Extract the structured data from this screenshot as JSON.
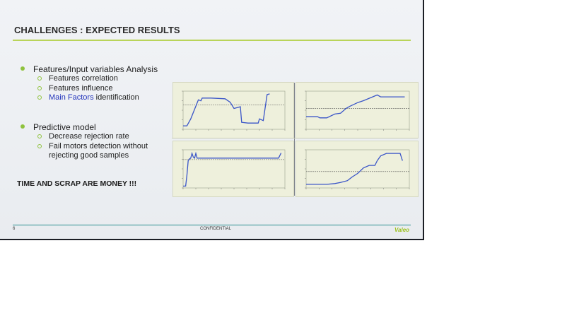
{
  "slide": {
    "title": "CHALLENGES : EXPECTED RESULTS",
    "sections": [
      {
        "heading": "Features/Input variables Analysis",
        "items": [
          {
            "text": "Features correlation"
          },
          {
            "text": "Features influence"
          },
          {
            "accent": "Main Factors",
            "text": " identification"
          }
        ]
      },
      {
        "heading": "Predictive model",
        "items": [
          {
            "text": "Decrease rejection rate"
          },
          {
            "text": "Fail motors detection without"
          },
          {
            "text": "rejecting good samples"
          }
        ]
      }
    ],
    "callout": "TIME AND SCRAP ARE MONEY !!!",
    "footer": {
      "page_number": "6",
      "label": "CONFIDENTIAL",
      "logo": "Valeo"
    },
    "colors": {
      "accent_green": "#8fc23d",
      "line_blue": "#3a55c8",
      "text_accent": "#2233bb"
    }
  },
  "chart_data": [
    {
      "type": "line",
      "name_position": "top-left",
      "x": [
        0,
        3,
        6,
        12,
        14,
        15,
        22,
        33,
        37,
        40,
        45,
        46,
        51,
        59,
        60,
        63,
        66,
        68
      ],
      "values": [
        0.1,
        0.1,
        0.3,
        0.85,
        0.82,
        0.9,
        0.9,
        0.88,
        0.78,
        0.6,
        0.65,
        0.2,
        0.18,
        0.18,
        0.3,
        0.25,
        1.0,
        1.02
      ],
      "threshold": 0.7,
      "xlim": [
        0,
        80
      ],
      "ylim": [
        0,
        1.1
      ]
    },
    {
      "type": "line",
      "name_position": "top-right",
      "x": [
        0,
        6,
        10,
        12,
        18,
        25,
        30,
        35,
        38,
        45,
        50,
        58,
        62,
        65,
        70,
        82,
        86
      ],
      "values": [
        0.33,
        0.33,
        0.33,
        0.3,
        0.3,
        0.4,
        0.42,
        0.55,
        0.6,
        0.7,
        0.75,
        0.85,
        0.9,
        0.85,
        0.85,
        0.85,
        0.85
      ],
      "threshold": 0.55,
      "xlim": [
        0,
        90
      ],
      "ylim": [
        0,
        1.0
      ]
    },
    {
      "type": "line",
      "name_position": "bottom-left",
      "x": [
        0,
        2,
        3,
        4,
        5,
        6,
        7,
        8,
        9,
        10,
        11,
        12,
        14,
        20,
        40,
        60,
        70,
        75,
        77
      ],
      "values": [
        0.05,
        0.05,
        0.35,
        0.75,
        0.8,
        0.82,
        0.95,
        0.85,
        0.82,
        0.95,
        0.82,
        0.82,
        0.82,
        0.82,
        0.82,
        0.82,
        0.82,
        0.82,
        0.96
      ],
      "threshold": 0.78,
      "xlim": [
        0,
        80
      ],
      "ylim": [
        0,
        1.05
      ]
    },
    {
      "type": "line",
      "name_position": "bottom-right",
      "x": [
        0,
        10,
        18,
        25,
        30,
        36,
        40,
        45,
        50,
        55,
        60,
        62,
        65,
        70,
        75,
        82,
        84
      ],
      "values": [
        0.1,
        0.1,
        0.1,
        0.12,
        0.15,
        0.2,
        0.3,
        0.4,
        0.55,
        0.62,
        0.62,
        0.75,
        0.88,
        0.95,
        0.95,
        0.95,
        0.75
      ],
      "threshold": 0.45,
      "xlim": [
        0,
        90
      ],
      "ylim": [
        0,
        1.05
      ]
    }
  ]
}
